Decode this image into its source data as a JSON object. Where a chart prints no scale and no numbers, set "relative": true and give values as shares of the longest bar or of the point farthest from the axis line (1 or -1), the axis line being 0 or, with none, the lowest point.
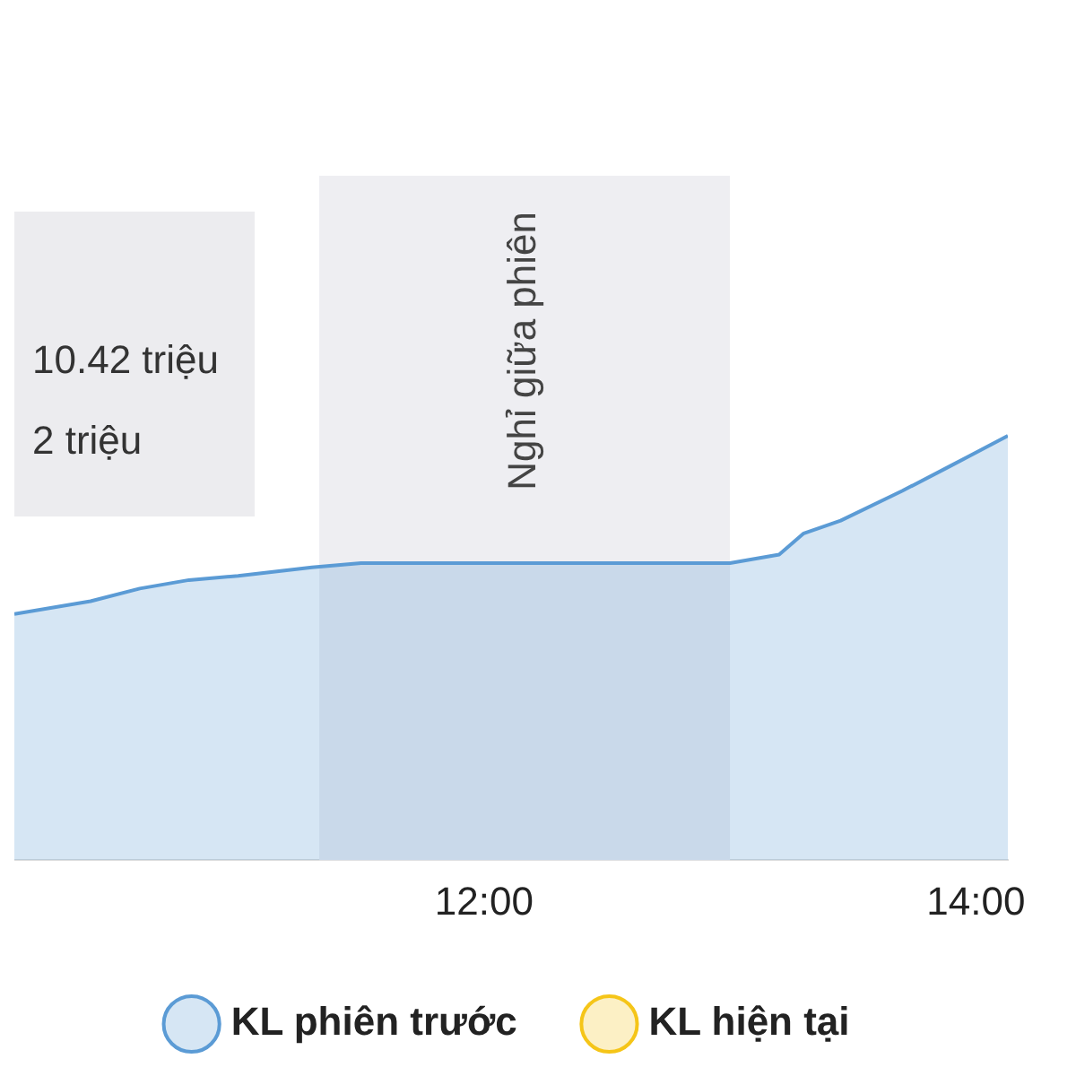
{
  "chart_data": {
    "type": "area",
    "relative": true,
    "legend": "bottom",
    "x": [
      10.09,
      10.4,
      10.6,
      10.8,
      11.0,
      11.3,
      11.5,
      13.0,
      13.2,
      13.3,
      13.45,
      13.7,
      13.9,
      14.13
    ],
    "xlim": [
      10.09,
      14.13
    ],
    "xticks": [
      {
        "value": 12,
        "label": "12:00"
      },
      {
        "value": 14,
        "label": "14:00"
      }
    ],
    "series": [
      {
        "name": "KL phiên trước",
        "color": "#5b9bd5",
        "values": [
          0.58,
          0.61,
          0.64,
          0.66,
          0.67,
          0.69,
          0.7,
          0.7,
          0.72,
          0.77,
          0.8,
          0.87,
          0.93,
          1
        ]
      },
      {
        "name": "KL hiện tại",
        "color": "#f5c518",
        "values": [
          null,
          null,
          null,
          null,
          null,
          null,
          null,
          null,
          null,
          null,
          null,
          null,
          null,
          null
        ]
      }
    ],
    "bands": [
      {
        "axis": "x",
        "from": 11.33,
        "to": 13.0,
        "label": "Nghỉ giữa phiên",
        "color": "#eeeef2"
      }
    ],
    "annotations": [
      "10.42 triệu",
      "2 triệu"
    ]
  }
}
